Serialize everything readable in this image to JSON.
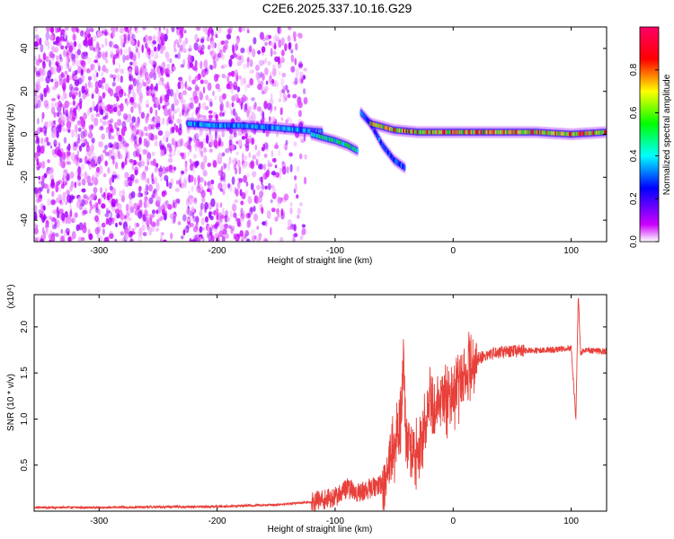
{
  "title": "C2E6.2025.337.10.16.G29",
  "chart_data": [
    {
      "type": "heatmap",
      "title": "C2E6.2025.337.10.16.G29",
      "xlabel": "Height of straight line (km)",
      "ylabel": "Frequency (Hz)",
      "xlim": [
        -355,
        130
      ],
      "ylim": [
        -50,
        50
      ],
      "xticks": [
        -300,
        -200,
        -100,
        0,
        100
      ],
      "xtick_labels": [
        "-300",
        "-200",
        "-100",
        "0",
        "100"
      ],
      "yticks": [
        -40,
        -20,
        0,
        20,
        40
      ],
      "ytick_labels": [
        "-40",
        "-20",
        "0",
        "20",
        "40"
      ],
      "colorbar": {
        "label": "Normalized spectral amplitude",
        "range": [
          0,
          1
        ],
        "ticks": [
          0.0,
          0.2,
          0.4,
          0.6,
          0.8
        ],
        "tick_labels": [
          "0.0",
          "0.2",
          "0.4",
          "0.6",
          "0.8"
        ],
        "colors": [
          "#ffffff",
          "#cc00ff",
          "#0000ff",
          "#00ffff",
          "#00ff00",
          "#ffff00",
          "#ff0000",
          "#ff0066"
        ]
      },
      "noise_region": {
        "x_range": [
          -355,
          -125
        ],
        "y_range": [
          -50,
          50
        ],
        "amplitude_range": [
          0.0,
          0.12
        ]
      },
      "tracks": [
        {
          "points": [
            [
              -225,
              5
            ],
            [
              -200,
              4
            ],
            [
              -180,
              4
            ],
            [
              -150,
              3
            ],
            [
              -130,
              2
            ],
            [
              -110,
              1
            ]
          ],
          "amplitude": 0.35
        },
        {
          "points": [
            [
              -120,
              0
            ],
            [
              -100,
              -3
            ],
            [
              -90,
              -5
            ],
            [
              -80,
              -8
            ]
          ],
          "amplitude": 0.45
        },
        {
          "points": [
            [
              -78,
              10
            ],
            [
              -70,
              5
            ],
            [
              -60,
              -5
            ],
            [
              -50,
              -12
            ],
            [
              -40,
              -16
            ]
          ],
          "amplitude": 0.3
        },
        {
          "points": [
            [
              -70,
              5
            ],
            [
              -50,
              2
            ],
            [
              -30,
              1
            ],
            [
              0,
              1
            ],
            [
              30,
              1
            ],
            [
              70,
              1
            ],
            [
              100,
              0
            ],
            [
              130,
              1
            ]
          ],
          "amplitude": 0.7
        }
      ]
    },
    {
      "type": "line",
      "xlabel": "Height of straight line (km)",
      "ylabel": "SNR (10 * v/v)",
      "y_multiplier": "(x10⁴)",
      "xlim": [
        -355,
        130
      ],
      "ylim": [
        0,
        23500
      ],
      "xticks": [
        -300,
        -200,
        -100,
        0,
        100
      ],
      "xtick_labels": [
        "-300",
        "-200",
        "-100",
        "0",
        "100"
      ],
      "yticks": [
        5000,
        10000,
        15000,
        20000
      ],
      "ytick_labels": [
        "0.5",
        "1.0",
        "1.5",
        "2.0"
      ],
      "color": "#e8403a",
      "series": [
        {
          "x": [
            -355,
            -300,
            -200,
            -150,
            -120,
            -100,
            -90,
            -80,
            -70,
            -60,
            -55,
            -50,
            -45,
            -42,
            -40,
            -35,
            -30,
            -25,
            -20,
            -15,
            -10,
            -5,
            0,
            5,
            10,
            15,
            20,
            30,
            40,
            60,
            80,
            90,
            100,
            104,
            106,
            108,
            110,
            120,
            130
          ],
          "y": [
            400,
            400,
            500,
            700,
            1000,
            1500,
            2500,
            2000,
            2500,
            3000,
            5000,
            7000,
            9000,
            16500,
            8000,
            7000,
            6000,
            9000,
            12000,
            11000,
            12500,
            12000,
            13000,
            14000,
            15000,
            16000,
            16500,
            17000,
            17300,
            17400,
            17500,
            17600,
            17700,
            10000,
            23500,
            17000,
            17500,
            17400,
            17300
          ]
        }
      ]
    }
  ]
}
